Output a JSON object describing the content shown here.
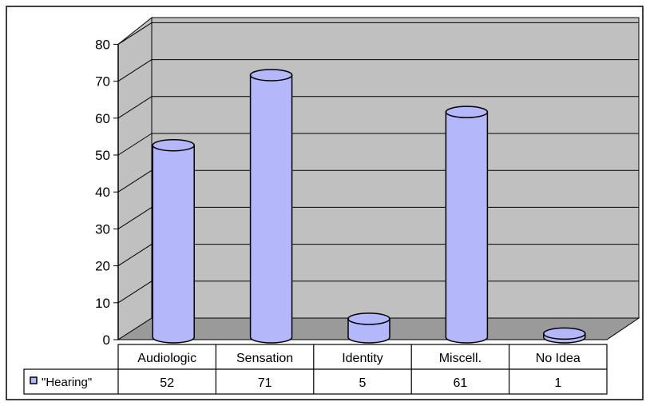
{
  "chart_data": {
    "type": "bar",
    "style": "3d-cylinder",
    "categories": [
      "Audiologic",
      "Sensation",
      "Identity",
      "Miscell.",
      "No Idea"
    ],
    "series": [
      {
        "name": "\"Hearing\"",
        "values": [
          52,
          71,
          5,
          61,
          1
        ]
      }
    ],
    "y_ticks": [
      0,
      10,
      20,
      30,
      40,
      50,
      60,
      70,
      80
    ],
    "ylim": [
      0,
      80
    ],
    "grid": true,
    "legend": "data-table-left",
    "colors": {
      "bar_fill": "#b4b8fa",
      "bar_side": "#8f93e6",
      "wall": "#c0c0c0",
      "floor": "#9a9a9a",
      "grid": "#000000"
    }
  }
}
